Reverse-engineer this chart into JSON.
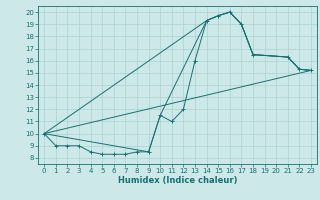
{
  "title": "",
  "xlabel": "Humidex (Indice chaleur)",
  "xlim": [
    -0.5,
    23.5
  ],
  "ylim": [
    7.5,
    20.5
  ],
  "xticks": [
    0,
    1,
    2,
    3,
    4,
    5,
    6,
    7,
    8,
    9,
    10,
    11,
    12,
    13,
    14,
    15,
    16,
    17,
    18,
    19,
    20,
    21,
    22,
    23
  ],
  "yticks": [
    8,
    9,
    10,
    11,
    12,
    13,
    14,
    15,
    16,
    17,
    18,
    19,
    20
  ],
  "bg_color": "#cce8e8",
  "grid_color": "#aad0d0",
  "line_color": "#1a7070",
  "main_line": {
    "x": [
      0,
      1,
      2,
      3,
      4,
      5,
      6,
      7,
      8,
      9,
      10,
      11,
      12,
      13,
      14,
      15,
      16,
      17,
      18,
      21,
      22,
      23
    ],
    "y": [
      10,
      9,
      9,
      9,
      8.5,
      8.3,
      8.3,
      8.3,
      8.5,
      8.5,
      11.5,
      11,
      12,
      16,
      19.3,
      19.7,
      20,
      19,
      16.5,
      16.3,
      15.3,
      15.2
    ]
  },
  "extra_lines": [
    {
      "x": [
        0,
        9,
        10,
        14,
        15,
        16,
        17,
        18,
        21,
        22,
        23
      ],
      "y": [
        10,
        8.5,
        11.5,
        19.3,
        19.7,
        20,
        19,
        16.5,
        16.3,
        15.3,
        15.2
      ]
    },
    {
      "x": [
        0,
        14,
        15,
        16,
        17,
        18,
        21,
        22,
        23
      ],
      "y": [
        10,
        19.3,
        19.7,
        20,
        19,
        16.5,
        16.3,
        15.3,
        15.2
      ]
    },
    {
      "x": [
        0,
        23
      ],
      "y": [
        10,
        15.2
      ]
    }
  ]
}
